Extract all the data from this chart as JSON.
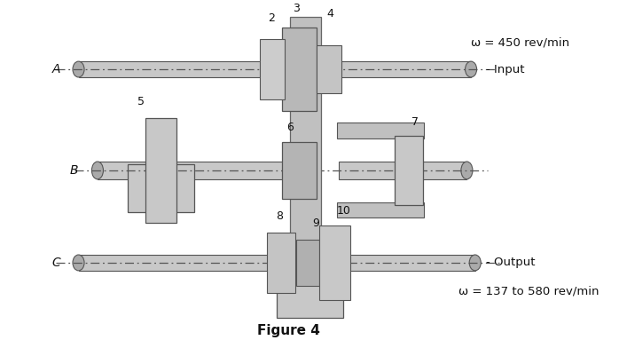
{
  "figure_title": "Figure 4",
  "bg_color": "#ffffff",
  "text_color": "#111111",
  "label_omega_top": "ω = 450 rev/min",
  "label_omega_bot": "ω = 137 to 580 rev/min",
  "label_input": "Input",
  "label_output": "Output",
  "label_A": "A",
  "label_B": "B",
  "label_C": "C"
}
